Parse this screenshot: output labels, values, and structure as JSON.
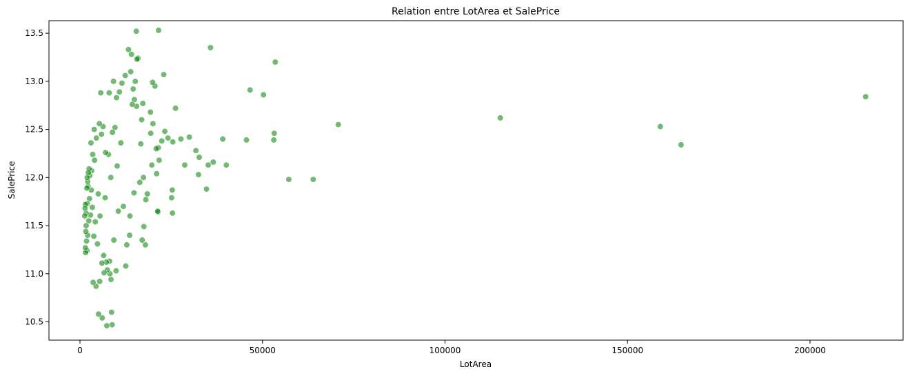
{
  "chart_data": {
    "type": "scatter",
    "title": "Relation entre LotArea et SalePrice",
    "xlabel": "LotArea",
    "ylabel": "SalePrice",
    "xlim": [
      -8500,
      225500
    ],
    "ylim": [
      10.31,
      13.63
    ],
    "xticks": [
      0,
      50000,
      100000,
      150000,
      200000
    ],
    "yticks": [
      10.5,
      11.0,
      11.5,
      12.0,
      12.5,
      13.0,
      13.5
    ],
    "grid": false,
    "legend": "none",
    "point_color": "#008000",
    "point_opacity": 0.55,
    "points": [
      [
        215245,
        12.84
      ],
      [
        164660,
        12.34
      ],
      [
        159000,
        12.53
      ],
      [
        115149,
        12.62
      ],
      [
        70761,
        12.55
      ],
      [
        63887,
        11.98
      ],
      [
        57200,
        11.98
      ],
      [
        53504,
        13.2
      ],
      [
        53227,
        12.46
      ],
      [
        53107,
        12.39
      ],
      [
        50271,
        12.86
      ],
      [
        46589,
        12.91
      ],
      [
        45600,
        12.39
      ],
      [
        39104,
        12.4
      ],
      [
        40094,
        12.13
      ],
      [
        36500,
        12.16
      ],
      [
        35760,
        13.35
      ],
      [
        35133,
        12.13
      ],
      [
        34650,
        11.88
      ],
      [
        32668,
        12.21
      ],
      [
        32463,
        12.03
      ],
      [
        31770,
        12.28
      ],
      [
        29959,
        12.42
      ],
      [
        28698,
        12.13
      ],
      [
        27650,
        12.4
      ],
      [
        26178,
        12.72
      ],
      [
        25419,
        12.37
      ],
      [
        25286,
        11.87
      ],
      [
        25095,
        11.79
      ],
      [
        25339,
        11.63
      ],
      [
        24090,
        12.41
      ],
      [
        23257,
        12.48
      ],
      [
        22950,
        13.07
      ],
      [
        22420,
        12.38
      ],
      [
        21695,
        12.18
      ],
      [
        21453,
        12.31
      ],
      [
        21384,
        11.64
      ],
      [
        21286,
        11.65
      ],
      [
        21535,
        13.53
      ],
      [
        21000,
        12.04
      ],
      [
        20896,
        12.3
      ],
      [
        20544,
        12.95
      ],
      [
        20000,
        12.56
      ],
      [
        19900,
        12.99
      ],
      [
        19690,
        12.13
      ],
      [
        19378,
        12.46
      ],
      [
        19296,
        12.68
      ],
      [
        18450,
        11.83
      ],
      [
        18030,
        11.77
      ],
      [
        17920,
        11.3
      ],
      [
        17500,
        11.49
      ],
      [
        17400,
        12.0
      ],
      [
        17043,
        11.35
      ],
      [
        17217,
        12.77
      ],
      [
        16905,
        12.6
      ],
      [
        16669,
        12.35
      ],
      [
        16392,
        11.95
      ],
      [
        15922,
        13.24
      ],
      [
        15623,
        13.23
      ],
      [
        15500,
        12.74
      ],
      [
        15431,
        13.52
      ],
      [
        15138,
        13.0
      ],
      [
        14892,
        12.81
      ],
      [
        14803,
        11.84
      ],
      [
        14585,
        12.92
      ],
      [
        14337,
        12.76
      ],
      [
        14115,
        13.28
      ],
      [
        13891,
        13.1
      ],
      [
        13682,
        11.6
      ],
      [
        13600,
        11.4
      ],
      [
        13300,
        13.33
      ],
      [
        12822,
        11.3
      ],
      [
        12537,
        11.08
      ],
      [
        12400,
        13.06
      ],
      [
        11900,
        11.7
      ],
      [
        11500,
        12.98
      ],
      [
        11200,
        12.36
      ],
      [
        10800,
        12.89
      ],
      [
        10500,
        11.65
      ],
      [
        10200,
        12.12
      ],
      [
        10000,
        12.83
      ],
      [
        9900,
        11.03
      ],
      [
        9600,
        12.52
      ],
      [
        9300,
        11.35
      ],
      [
        9180,
        13.0
      ],
      [
        8900,
        12.47
      ],
      [
        8800,
        10.47
      ],
      [
        8640,
        10.6
      ],
      [
        8500,
        10.94
      ],
      [
        8450,
        12.0
      ],
      [
        8200,
        11.0
      ],
      [
        8100,
        11.13
      ],
      [
        8000,
        12.88
      ],
      [
        7800,
        12.24
      ],
      [
        7500,
        11.04
      ],
      [
        7340,
        10.46
      ],
      [
        7200,
        11.12
      ],
      [
        7000,
        12.26
      ],
      [
        6900,
        11.79
      ],
      [
        6600,
        11.01
      ],
      [
        6500,
        11.19
      ],
      [
        6300,
        12.53
      ],
      [
        6100,
        10.54
      ],
      [
        6000,
        11.11
      ],
      [
        5900,
        12.45
      ],
      [
        5700,
        12.88
      ],
      [
        5500,
        11.6
      ],
      [
        5400,
        10.92
      ],
      [
        5300,
        12.56
      ],
      [
        5100,
        10.58
      ],
      [
        5000,
        11.83
      ],
      [
        4800,
        11.31
      ],
      [
        4500,
        12.41
      ],
      [
        4400,
        10.87
      ],
      [
        4200,
        11.54
      ],
      [
        4000,
        12.18
      ],
      [
        3900,
        12.5
      ],
      [
        3800,
        11.39
      ],
      [
        3600,
        10.91
      ],
      [
        3500,
        12.24
      ],
      [
        3400,
        11.69
      ],
      [
        3200,
        12.07
      ],
      [
        3100,
        11.87
      ],
      [
        3000,
        12.36
      ],
      [
        2887,
        11.61
      ],
      [
        2700,
        12.02
      ],
      [
        2600,
        11.78
      ],
      [
        2500,
        12.09
      ],
      [
        2400,
        11.55
      ],
      [
        2280,
        12.05
      ],
      [
        2200,
        11.91
      ],
      [
        2117,
        11.96
      ],
      [
        2100,
        11.4
      ],
      [
        2000,
        11.73
      ],
      [
        1974,
        12.0
      ],
      [
        1950,
        11.24
      ],
      [
        1890,
        11.89
      ],
      [
        1800,
        11.34
      ],
      [
        1700,
        11.5
      ],
      [
        1680,
        11.63
      ],
      [
        1600,
        11.44
      ],
      [
        1526,
        11.22
      ],
      [
        1491,
        11.72
      ],
      [
        1477,
        11.27
      ],
      [
        1300,
        11.6
      ],
      [
        1400,
        11.68
      ]
    ]
  }
}
